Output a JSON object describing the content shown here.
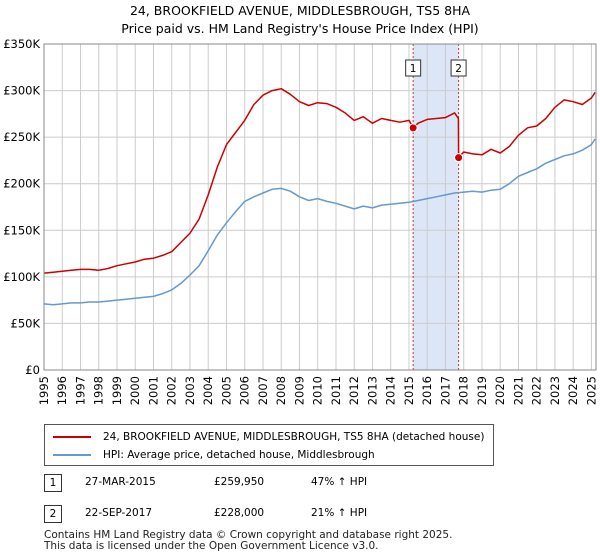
{
  "title_line1": "24, BROOKFIELD AVENUE, MIDDLESBROUGH, TS5 8HA",
  "title_line2": "Price paid vs. HM Land Registry's House Price Index (HPI)",
  "colors": {
    "property": "#cc0000",
    "hpi": "#6699cc",
    "shade": "#dde6f7",
    "grid": "#cccccc"
  },
  "chart_data": {
    "type": "line",
    "xlim": [
      1995.0,
      2025.25
    ],
    "ylim": [
      0,
      350000
    ],
    "y_ticks": [
      0,
      50000,
      100000,
      150000,
      200000,
      250000,
      300000,
      350000
    ],
    "y_tick_labels": [
      "£0",
      "£50K",
      "£100K",
      "£150K",
      "£200K",
      "£250K",
      "£300K",
      "£350K"
    ],
    "x_ticks": [
      1995,
      1996,
      1997,
      1998,
      1999,
      2000,
      2001,
      2002,
      2003,
      2004,
      2005,
      2006,
      2007,
      2008,
      2009,
      2010,
      2011,
      2012,
      2013,
      2014,
      2015,
      2016,
      2017,
      2018,
      2019,
      2020,
      2021,
      2022,
      2023,
      2024,
      2025
    ],
    "x_tick_labels": [
      "1995",
      "1996",
      "1997",
      "1998",
      "1999",
      "2000",
      "2001",
      "2002",
      "2003",
      "2004",
      "2005",
      "2006",
      "2007",
      "2008",
      "2009",
      "2010",
      "2011",
      "2012",
      "2013",
      "2014",
      "2015",
      "2016",
      "2017",
      "2018",
      "2019",
      "2020",
      "2021",
      "2022",
      "2023",
      "2024",
      "2025"
    ],
    "shaded_region": [
      2015.23,
      2017.72
    ],
    "series": [
      {
        "name": "24, BROOKFIELD AVENUE, MIDDLESBROUGH, TS5 8HA (detached house)",
        "x": [
          1995.0,
          1995.5,
          1996.0,
          1996.5,
          1997.0,
          1997.5,
          1998.0,
          1998.5,
          1999.0,
          1999.5,
          2000.0,
          2000.5,
          2001.0,
          2001.5,
          2002.0,
          2002.5,
          2003.0,
          2003.5,
          2004.0,
          2004.5,
          2005.0,
          2005.5,
          2006.0,
          2006.5,
          2007.0,
          2007.5,
          2008.0,
          2008.5,
          2009.0,
          2009.5,
          2010.0,
          2010.5,
          2011.0,
          2011.5,
          2012.0,
          2012.5,
          2013.0,
          2013.5,
          2014.0,
          2014.5,
          2015.0,
          2015.23,
          2015.5,
          2016.0,
          2016.5,
          2017.0,
          2017.5,
          2017.71,
          2017.72,
          2018.0,
          2018.5,
          2019.0,
          2019.5,
          2020.0,
          2020.5,
          2021.0,
          2021.5,
          2022.0,
          2022.5,
          2023.0,
          2023.5,
          2024.0,
          2024.5,
          2025.0,
          2025.2
        ],
        "y": [
          104000,
          105000,
          106000,
          107000,
          108000,
          108000,
          107000,
          109000,
          112000,
          114000,
          116000,
          119000,
          120000,
          123000,
          127000,
          137000,
          147000,
          162000,
          188000,
          218000,
          242000,
          255000,
          268000,
          285000,
          295000,
          300000,
          302000,
          296000,
          288000,
          284000,
          287000,
          286000,
          282000,
          276000,
          268000,
          272000,
          265000,
          270000,
          268000,
          266000,
          268000,
          259950,
          265000,
          269000,
          270000,
          271000,
          276000,
          270000,
          228000,
          234000,
          232000,
          231000,
          237000,
          233000,
          240000,
          252000,
          260000,
          262000,
          270000,
          282000,
          290000,
          288000,
          285000,
          292000,
          298000
        ]
      },
      {
        "name": "HPI: Average price, detached house, Middlesbrough",
        "x": [
          1995.0,
          1995.5,
          1996.0,
          1996.5,
          1997.0,
          1997.5,
          1998.0,
          1998.5,
          1999.0,
          1999.5,
          2000.0,
          2000.5,
          2001.0,
          2001.5,
          2002.0,
          2002.5,
          2003.0,
          2003.5,
          2004.0,
          2004.5,
          2005.0,
          2005.5,
          2006.0,
          2006.5,
          2007.0,
          2007.5,
          2008.0,
          2008.5,
          2009.0,
          2009.5,
          2010.0,
          2010.5,
          2011.0,
          2011.5,
          2012.0,
          2012.5,
          2013.0,
          2013.5,
          2014.0,
          2014.5,
          2015.0,
          2015.5,
          2016.0,
          2016.5,
          2017.0,
          2017.5,
          2018.0,
          2018.5,
          2019.0,
          2019.5,
          2020.0,
          2020.5,
          2021.0,
          2021.5,
          2022.0,
          2022.5,
          2023.0,
          2023.5,
          2024.0,
          2024.5,
          2025.0,
          2025.2
        ],
        "y": [
          71000,
          70000,
          71000,
          72000,
          72000,
          73000,
          73000,
          74000,
          75000,
          76000,
          77000,
          78000,
          79000,
          82000,
          86000,
          93000,
          102000,
          112000,
          128000,
          145000,
          158000,
          170000,
          181000,
          186000,
          190000,
          194000,
          195000,
          192000,
          186000,
          182000,
          184000,
          181000,
          179000,
          176000,
          173000,
          176000,
          174000,
          177000,
          178000,
          179000,
          180000,
          182000,
          184000,
          186000,
          188000,
          190000,
          191000,
          192000,
          191000,
          193000,
          194000,
          200000,
          208000,
          212000,
          216000,
          222000,
          226000,
          230000,
          232000,
          236000,
          242000,
          248000
        ]
      }
    ],
    "sales": [
      {
        "label": "1",
        "x": 2015.23,
        "price": 259950
      },
      {
        "label": "2",
        "x": 2017.72,
        "price": 228000
      }
    ]
  },
  "legend": {
    "property_label": "24, BROOKFIELD AVENUE, MIDDLESBROUGH, TS5 8HA (detached house)",
    "hpi_label": "HPI: Average price, detached house, Middlesbrough"
  },
  "sales_table": [
    {
      "num": "1",
      "date": "27-MAR-2015",
      "price": "£259,950",
      "hpi": "47% ↑ HPI"
    },
    {
      "num": "2",
      "date": "22-SEP-2017",
      "price": "£228,000",
      "hpi": "21% ↑ HPI"
    }
  ],
  "footer_line1": "Contains HM Land Registry data © Crown copyright and database right 2025.",
  "footer_line2": "This data is licensed under the Open Government Licence v3.0."
}
